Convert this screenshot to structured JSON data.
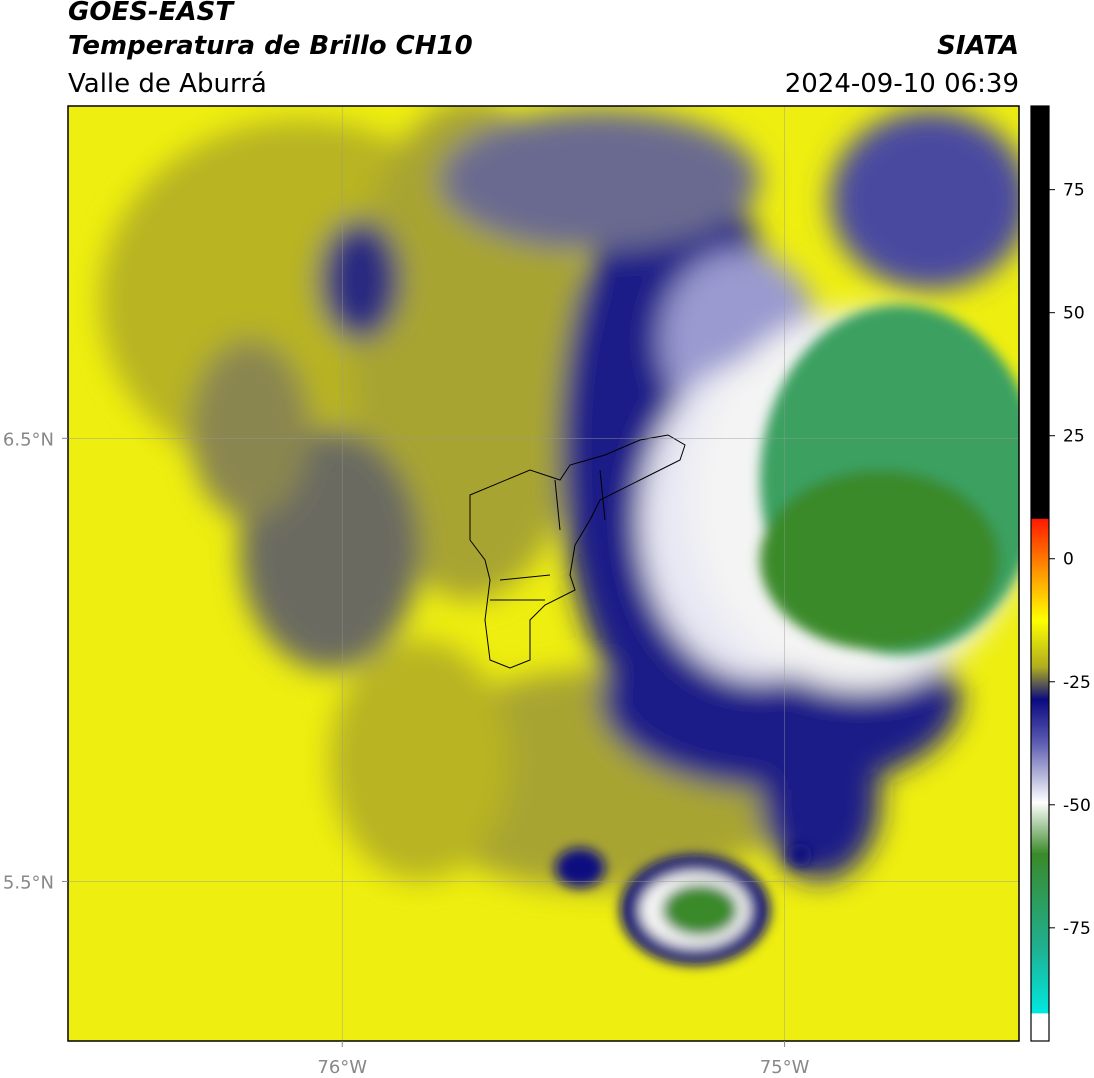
{
  "header": {
    "title": "GOES-EAST",
    "subtitle": "Temperatura de Brillo CH10",
    "region": "Valle de Aburrá",
    "source": "SIATA",
    "datetime": "2024-09-10 06:39"
  },
  "map": {
    "xlim": [
      -76.62,
      -74.47
    ],
    "ylim": [
      5.14,
      7.25
    ],
    "xticks": [
      {
        "value": -76,
        "label": "76°W"
      },
      {
        "value": -75,
        "label": "75°W"
      }
    ],
    "yticks": [
      {
        "value": 6.5,
        "label": "6.5°N"
      },
      {
        "value": 5.5,
        "label": "5.5°N"
      }
    ],
    "grid": true
  },
  "colorbar": {
    "lim": [
      -98,
      92
    ],
    "ticks": [
      75,
      50,
      25,
      0,
      -25,
      -50,
      -75
    ]
  }
}
